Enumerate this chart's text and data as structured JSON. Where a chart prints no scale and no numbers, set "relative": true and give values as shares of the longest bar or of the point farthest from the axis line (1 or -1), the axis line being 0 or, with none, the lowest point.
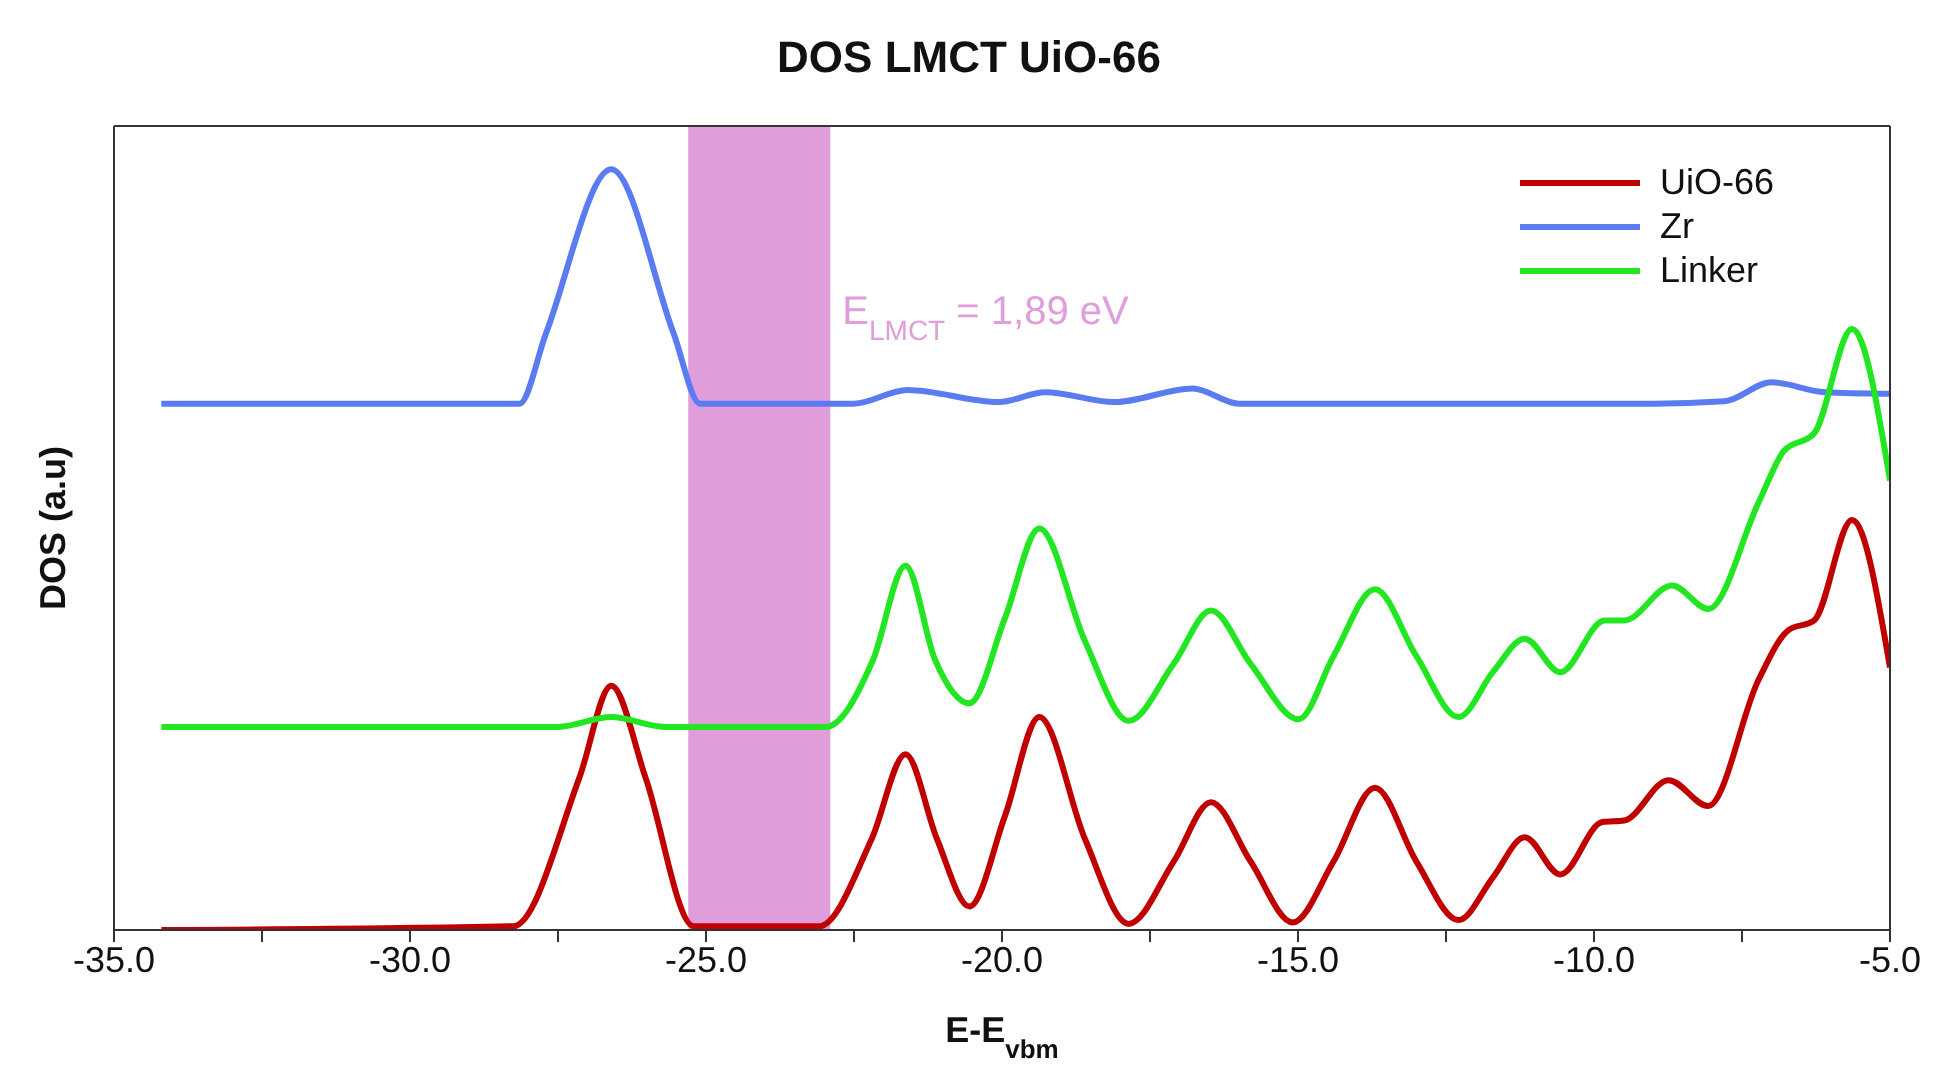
{
  "chart_data": {
    "type": "line",
    "title": "DOS LMCT UiO-66",
    "xlabel": "E-E$_{vbm}$",
    "ylabel": "DOS (a.u)",
    "relative": true,
    "legend": "top right",
    "xlim": [
      -35,
      -5
    ],
    "xticks": [
      {
        "value": -35,
        "label": "-35.0"
      },
      {
        "value": -32.5,
        "label": null
      },
      {
        "value": -30,
        "label": "-30.0"
      },
      {
        "value": -27.5,
        "label": null
      },
      {
        "value": -25,
        "label": "-25.0"
      },
      {
        "value": -22.5,
        "label": null
      },
      {
        "value": -20,
        "label": "-20.0"
      },
      {
        "value": -17.5,
        "label": null
      },
      {
        "value": -15,
        "label": "-15.0"
      },
      {
        "value": -12.5,
        "label": null
      },
      {
        "value": -10,
        "label": "-10.0"
      },
      {
        "value": -7.5,
        "label": null
      },
      {
        "value": -5,
        "label": "-5.0"
      }
    ],
    "bands": [
      {
        "axis": "x",
        "from": -25.3,
        "to": -22.9,
        "label": "E$_{LMCT}$ = 1,89 eV",
        "color": "#e09ddc"
      }
    ],
    "series": [
      {
        "name": "UiO-66",
        "color": "#c00000",
        "x": [
          -34.2,
          -28.25,
          -27.14,
          -26.6,
          -26.02,
          -25.21,
          -23.09,
          -22.2,
          -21.63,
          -21.1,
          -20.55,
          -19.95,
          -19.37,
          -18.6,
          -17.86,
          -17.1,
          -16.47,
          -15.8,
          -15.09,
          -14.4,
          -13.7,
          -13.0,
          -12.29,
          -11.7,
          -11.17,
          -10.57,
          -9.86,
          -9.49,
          -8.74,
          -8.07,
          -7.22,
          -6.72,
          -6.28,
          -5.64,
          -5.0
        ],
        "values": [
          0,
          0.005,
          0.2,
          0.321,
          0.2,
          0.005,
          0.005,
          0.12,
          0.231,
          0.12,
          0.031,
          0.15,
          0.28,
          0.12,
          0.008,
          0.09,
          0.168,
          0.09,
          0.01,
          0.09,
          0.187,
          0.09,
          0.013,
          0.07,
          0.122,
          0.073,
          0.142,
          0.144,
          0.197,
          0.163,
          0.329,
          0.394,
          0.407,
          0.539,
          0.345
        ]
      },
      {
        "name": "Zr",
        "color": "#5b7cf0",
        "x": [
          -34.2,
          -28.15,
          -27.7,
          -26.6,
          -25.55,
          -25.1,
          -22.5,
          -21.6,
          -20.05,
          -19.27,
          -18.1,
          -16.78,
          -16.0,
          -9.0,
          -7.8,
          -7.0,
          -6.1,
          -5.0
        ],
        "values": [
          0.692,
          0.692,
          0.785,
          1.0,
          0.785,
          0.692,
          0.692,
          0.71,
          0.694,
          0.707,
          0.694,
          0.712,
          0.692,
          0.692,
          0.695,
          0.72,
          0.707,
          0.705
        ]
      },
      {
        "name": "Linker",
        "color": "#22e622",
        "x": [
          -34.2,
          -27.5,
          -26.6,
          -25.7,
          -22.98,
          -22.18,
          -21.63,
          -21.13,
          -20.55,
          -19.95,
          -19.37,
          -18.6,
          -17.86,
          -17.1,
          -16.47,
          -15.8,
          -14.99,
          -14.4,
          -13.7,
          -13.0,
          -12.29,
          -11.7,
          -11.17,
          -10.57,
          -9.82,
          -9.49,
          -8.68,
          -8.07,
          -7.22,
          -6.79,
          -6.28,
          -5.64,
          -5.0
        ],
        "values": [
          0.267,
          0.267,
          0.28,
          0.267,
          0.267,
          0.355,
          0.479,
          0.355,
          0.298,
          0.41,
          0.528,
          0.38,
          0.275,
          0.35,
          0.42,
          0.35,
          0.277,
          0.36,
          0.448,
          0.36,
          0.28,
          0.34,
          0.383,
          0.339,
          0.407,
          0.407,
          0.453,
          0.422,
          0.562,
          0.63,
          0.653,
          0.79,
          0.591
        ]
      }
    ]
  }
}
